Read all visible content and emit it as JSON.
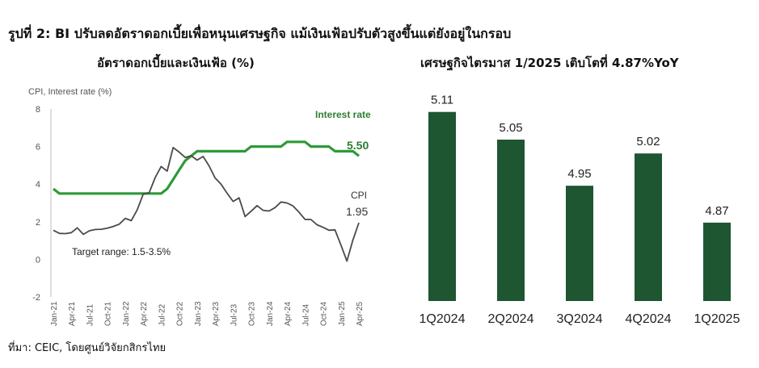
{
  "figure_title": "รูปที่ 2: BI ปรับลดอัตราดอกเบี้ยเพื่อหนุนเศรษฐกิจ แม้เงินเฟ้อปรับตัวสูงขึ้นแต่ยังอยู่ในกรอบ",
  "source": "ที่มา: CEIC, โดยศูนย์วิจัยกสิกรไทย",
  "colors": {
    "green_line": "#2e9a3a",
    "cpi_line": "#4a4a4a",
    "bar": "#1e5631"
  },
  "chart_data": [
    {
      "type": "line",
      "panel_title": "อัตราดอกเบี้ยและเงินเฟ้อ (%)",
      "ylabel": "CPI, Interest rate (%)",
      "ylim": [
        -2,
        8
      ],
      "yticks": [
        -2,
        0,
        2,
        4,
        6,
        8
      ],
      "x": [
        "Jan-21",
        "Feb-21",
        "Mar-21",
        "Apr-21",
        "May-21",
        "Jun-21",
        "Jul-21",
        "Aug-21",
        "Sep-21",
        "Oct-21",
        "Nov-21",
        "Dec-21",
        "Jan-22",
        "Feb-22",
        "Mar-22",
        "Apr-22",
        "May-22",
        "Jun-22",
        "Jul-22",
        "Aug-22",
        "Sep-22",
        "Oct-22",
        "Nov-22",
        "Dec-22",
        "Jan-23",
        "Feb-23",
        "Mar-23",
        "Apr-23",
        "May-23",
        "Jun-23",
        "Jul-23",
        "Aug-23",
        "Sep-23",
        "Oct-23",
        "Nov-23",
        "Dec-23",
        "Jan-24",
        "Feb-24",
        "Mar-24",
        "Apr-24",
        "May-24",
        "Jun-24",
        "Jul-24",
        "Aug-24",
        "Sep-24",
        "Oct-24",
        "Nov-24",
        "Dec-24",
        "Jan-25",
        "Feb-25",
        "Mar-25",
        "Apr-25"
      ],
      "xtick_labels": [
        "Jan-21",
        "Apr-21",
        "Jul-21",
        "Oct-21",
        "Jan-22",
        "Apr-22",
        "Jul-22",
        "Oct-22",
        "Jan-23",
        "Apr-23",
        "Jul-23",
        "Oct-23",
        "Jan-24",
        "Apr-24",
        "Jul-24",
        "Oct-24",
        "Jan-25",
        "Apr-25"
      ],
      "series": [
        {
          "name": "Interest rate",
          "end_label": "5.50",
          "values": [
            3.75,
            3.5,
            3.5,
            3.5,
            3.5,
            3.5,
            3.5,
            3.5,
            3.5,
            3.5,
            3.5,
            3.5,
            3.5,
            3.5,
            3.5,
            3.5,
            3.5,
            3.5,
            3.5,
            3.75,
            4.25,
            4.75,
            5.25,
            5.5,
            5.75,
            5.75,
            5.75,
            5.75,
            5.75,
            5.75,
            5.75,
            5.75,
            5.75,
            6.0,
            6.0,
            6.0,
            6.0,
            6.0,
            6.0,
            6.25,
            6.25,
            6.25,
            6.25,
            6.0,
            6.0,
            6.0,
            6.0,
            5.75,
            5.75,
            5.75,
            5.75,
            5.5
          ]
        },
        {
          "name": "CPI",
          "end_label": "1.95",
          "values": [
            1.55,
            1.38,
            1.37,
            1.42,
            1.68,
            1.33,
            1.52,
            1.59,
            1.6,
            1.66,
            1.75,
            1.87,
            2.18,
            2.06,
            2.64,
            3.47,
            3.55,
            4.35,
            4.94,
            4.69,
            5.95,
            5.71,
            5.42,
            5.51,
            5.28,
            5.47,
            4.97,
            4.33,
            4.0,
            3.52,
            3.08,
            3.27,
            2.28,
            2.56,
            2.86,
            2.61,
            2.57,
            2.75,
            3.05,
            3.0,
            2.84,
            2.51,
            2.13,
            2.12,
            1.84,
            1.71,
            1.55,
            1.57,
            0.76,
            -0.09,
            1.03,
            1.95
          ]
        }
      ],
      "annotations": [
        {
          "text": "Target range: 1.5-3.5%"
        }
      ]
    },
    {
      "type": "bar",
      "panel_title": "เศรษฐกิจไตรมาส 1/2025 เติบโตที่ 4.87%YoY",
      "categories": [
        "1Q2024",
        "2Q2024",
        "3Q2024",
        "4Q2024",
        "1Q2025"
      ],
      "values": [
        5.11,
        5.05,
        4.95,
        5.02,
        4.87
      ],
      "value_labels": [
        "5.11",
        "5.05",
        "4.95",
        "5.02",
        "4.87"
      ],
      "ylim": [
        4.7,
        5.12
      ]
    }
  ]
}
